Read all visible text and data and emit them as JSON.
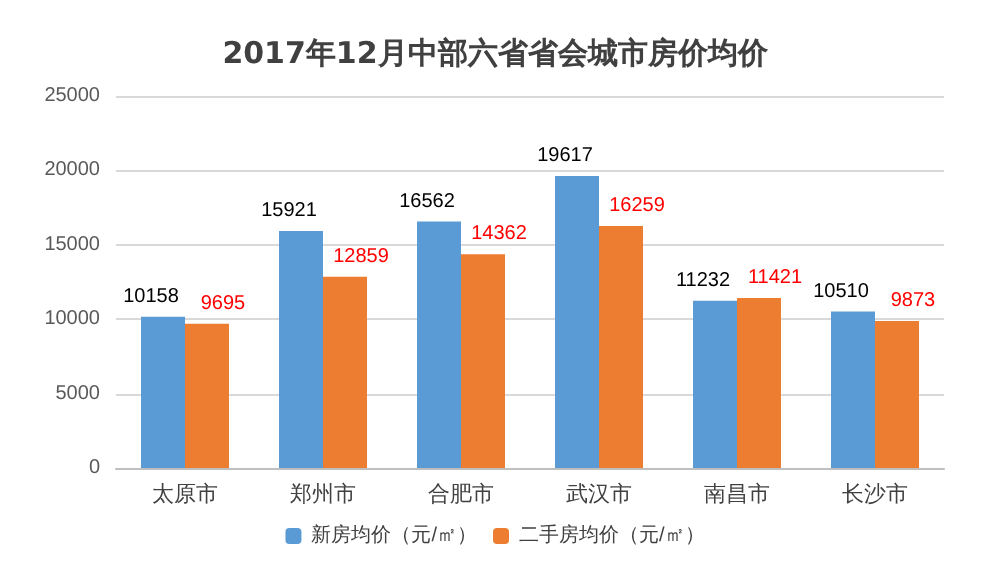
{
  "chart_data": {
    "type": "bar",
    "title": "2017年12月中部六省省会城市房价均价",
    "categories": [
      "太原市",
      "郑州市",
      "合肥市",
      "武汉市",
      "南昌市",
      "长沙市"
    ],
    "series": [
      {
        "name": "新房均价（元/㎡）",
        "color": "#5b9bd5",
        "values": [
          10158,
          15921,
          16562,
          19617,
          11232,
          10510
        ]
      },
      {
        "name": "二手房均价（元/㎡）",
        "color": "#ed7d31",
        "values": [
          9695,
          12859,
          14362,
          16259,
          11421,
          9873
        ]
      }
    ],
    "ylim": [
      0,
      25000
    ],
    "yticks": [
      0,
      5000,
      10000,
      15000,
      20000,
      25000
    ],
    "grid": "y",
    "legend": "bottom",
    "data_labels": true
  }
}
